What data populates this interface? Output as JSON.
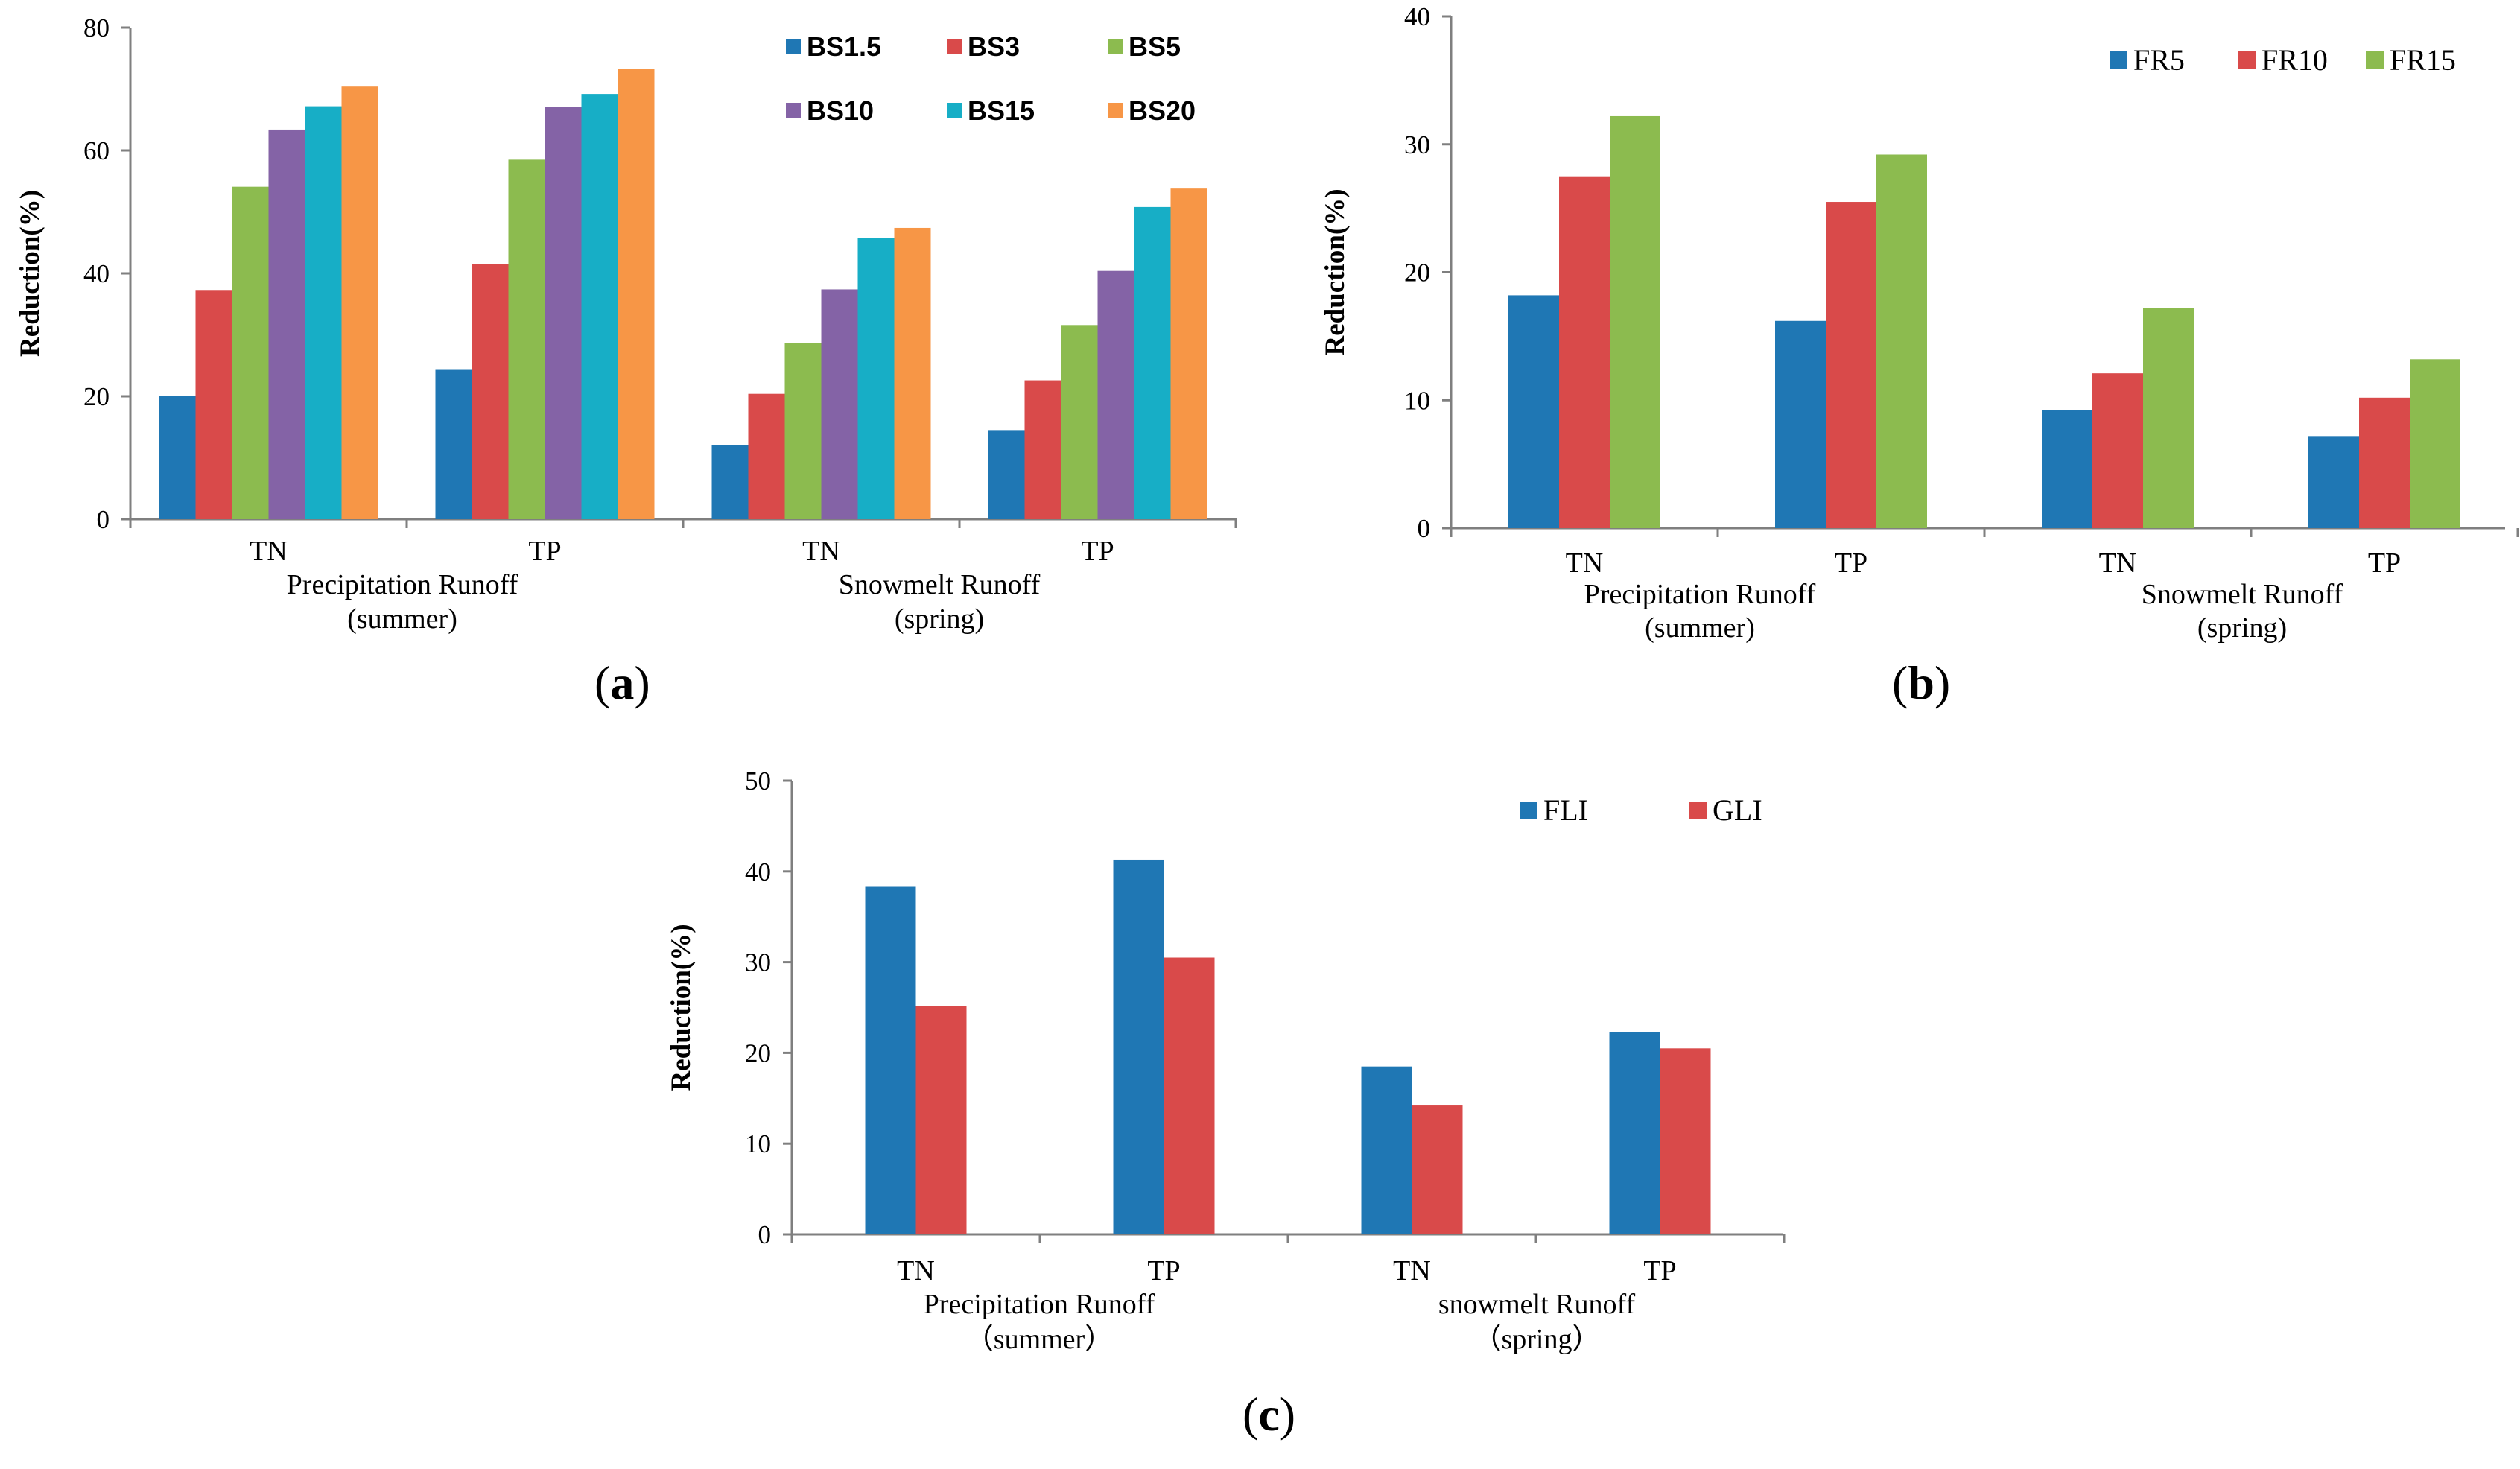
{
  "chart_data": [
    {
      "type": "bar",
      "panel_label": "a",
      "ylabel": "Reduction(%)",
      "ylim": [
        0,
        80
      ],
      "yticks": [
        0,
        20,
        40,
        60,
        80
      ],
      "categories": [
        "TN",
        "TP",
        "TN",
        "TP"
      ],
      "groups": [
        {
          "label_line1": "Precipitation Runoff",
          "label_line2": "(summer)"
        },
        {
          "label_line1": "Snowmelt Runoff",
          "label_line2": "(spring)"
        }
      ],
      "series": [
        {
          "name": "BS1.5",
          "color": "#1f77b4",
          "values": [
            20.1,
            24.3,
            12.0,
            14.5
          ]
        },
        {
          "name": "BS3",
          "color": "#d94a4a",
          "values": [
            37.3,
            41.5,
            20.4,
            22.6
          ]
        },
        {
          "name": "BS5",
          "color": "#8cbb4f",
          "values": [
            54.1,
            58.5,
            28.7,
            31.6
          ]
        },
        {
          "name": "BS10",
          "color": "#8463a6",
          "values": [
            63.4,
            67.1,
            37.4,
            40.4
          ]
        },
        {
          "name": "BS15",
          "color": "#17aec6",
          "values": [
            67.2,
            69.2,
            45.7,
            50.8
          ]
        },
        {
          "name": "BS20",
          "color": "#f79646",
          "values": [
            70.4,
            73.3,
            47.4,
            53.8
          ]
        }
      ],
      "legend": "top-right"
    },
    {
      "type": "bar",
      "panel_label": "b",
      "ylabel": "Reduction(%)",
      "ylim": [
        0,
        40
      ],
      "yticks": [
        0,
        10,
        20,
        30,
        40
      ],
      "categories": [
        "TN",
        "TP",
        "TN",
        "TP"
      ],
      "groups": [
        {
          "label_line1": "Precipitation Runoff",
          "label_line2": "(summer)"
        },
        {
          "label_line1": "Snowmelt Runoff",
          "label_line2": "(spring)"
        }
      ],
      "series": [
        {
          "name": "FR5",
          "color": "#1f77b4",
          "values": [
            18.2,
            16.2,
            9.2,
            7.2
          ]
        },
        {
          "name": "FR10",
          "color": "#d94a4a",
          "values": [
            27.5,
            25.5,
            12.1,
            10.2
          ]
        },
        {
          "name": "FR15",
          "color": "#8cbb4f",
          "values": [
            32.2,
            29.2,
            17.2,
            13.2
          ]
        }
      ],
      "legend": "top-right"
    },
    {
      "type": "bar",
      "panel_label": "c",
      "ylabel": "Reduction(%)",
      "ylim": [
        0,
        50
      ],
      "yticks": [
        0,
        10,
        20,
        30,
        40,
        50
      ],
      "categories": [
        "TN",
        "TP",
        "TN",
        "TP"
      ],
      "groups": [
        {
          "label_line1": "Precipitation Runoff",
          "label_line2": "（summer）"
        },
        {
          "label_line1": "snowmelt Runoff",
          "label_line2": "（spring）"
        }
      ],
      "series": [
        {
          "name": "FLI",
          "color": "#1f77b4",
          "values": [
            38.3,
            41.3,
            18.5,
            22.3
          ]
        },
        {
          "name": "GLI",
          "color": "#d94a4a",
          "values": [
            25.2,
            30.5,
            14.2,
            20.5
          ]
        }
      ],
      "legend": "top-right"
    }
  ]
}
